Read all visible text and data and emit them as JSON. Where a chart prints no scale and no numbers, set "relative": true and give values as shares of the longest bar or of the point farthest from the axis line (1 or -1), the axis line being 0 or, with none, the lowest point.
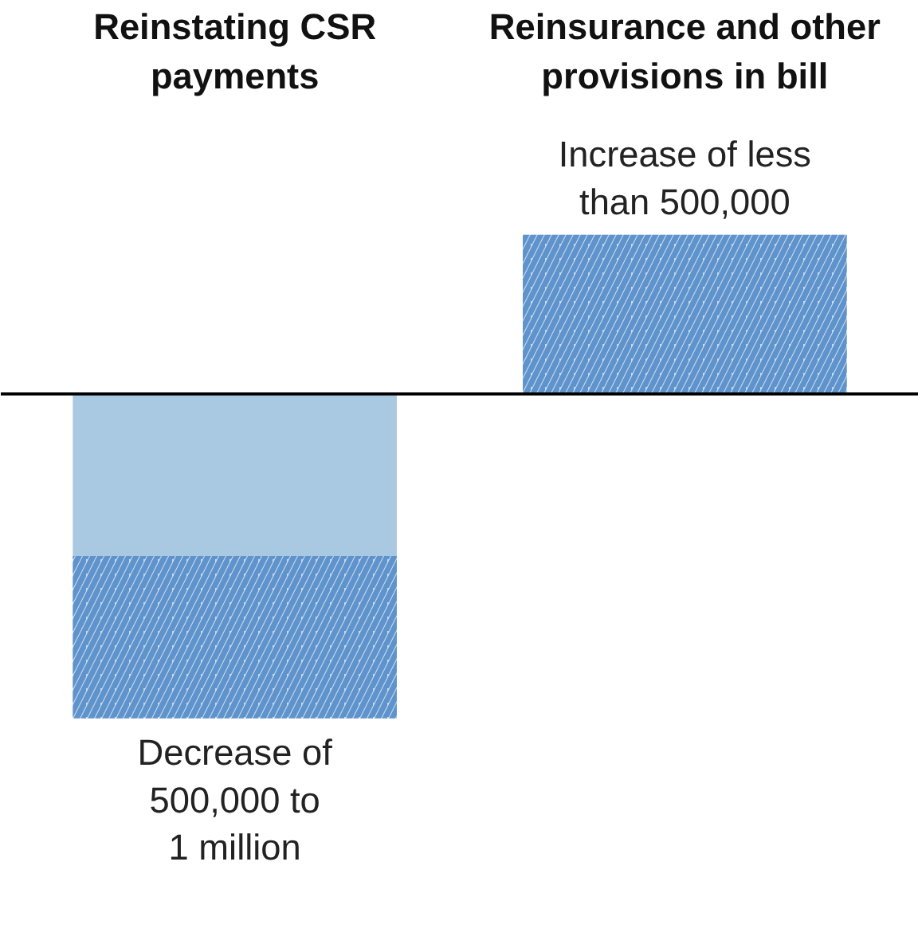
{
  "chart_data": {
    "type": "bar",
    "relative": true,
    "stacked": true,
    "categories": [
      "Reinstating CSR payments",
      "Reinsurance and other provisions in bill"
    ],
    "series": [
      {
        "color": "#a9c8e2",
        "values": [
          -0.5,
          null
        ]
      },
      {
        "color": "#5f93cc",
        "values": [
          -0.5,
          0.49
        ]
      }
    ],
    "annotations": [
      {
        "text": "Decrease of\n500,000 to\n1 million",
        "x": "Reinstating CSR payments",
        "y": -1
      },
      {
        "text": "Increase of less\nthan 500,000",
        "x": "Reinsurance and other provisions in bill",
        "y": 0.49
      }
    ]
  }
}
